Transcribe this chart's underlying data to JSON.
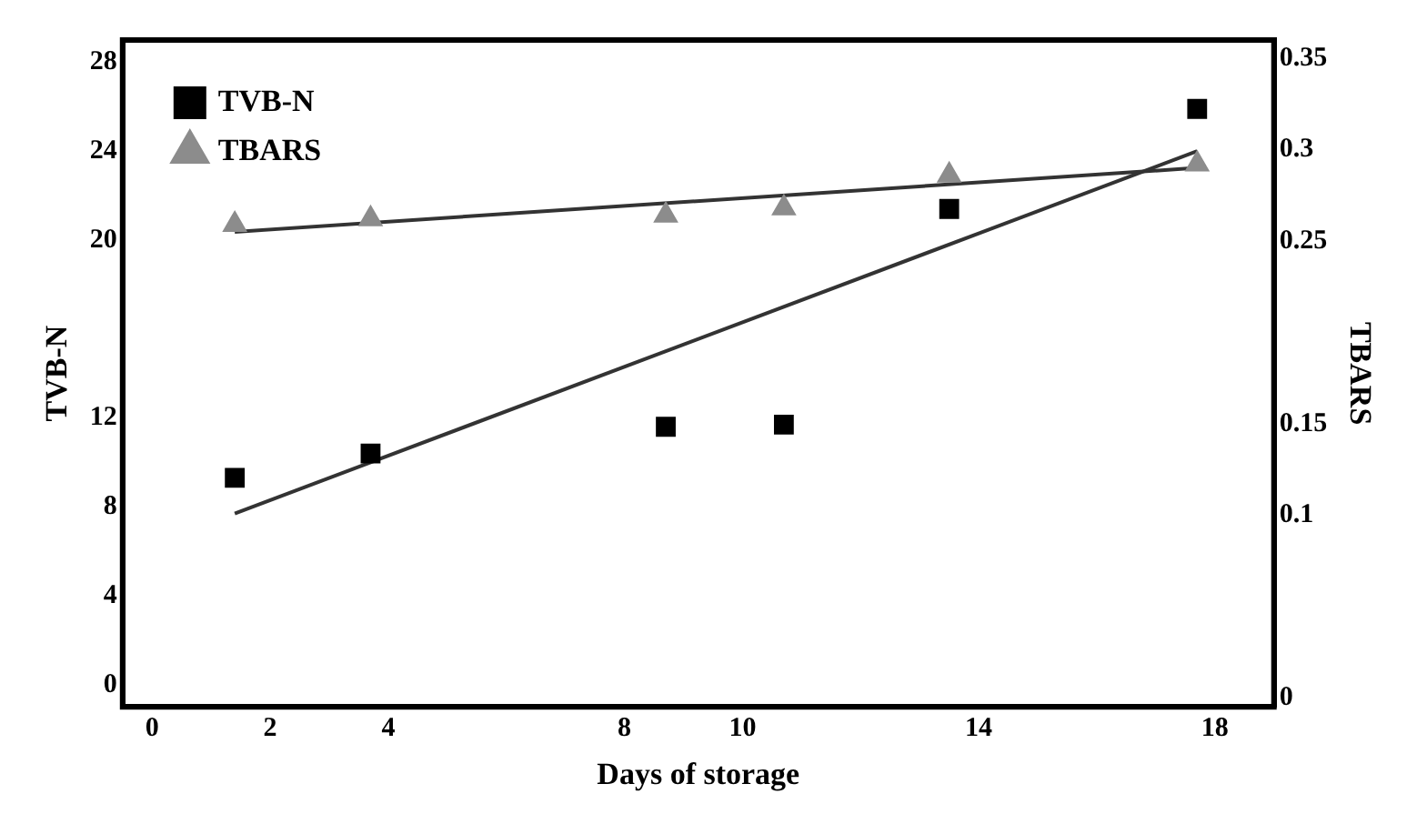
{
  "chart_data": {
    "type": "scatter",
    "xlabel": "Days of storage",
    "ylabel": "TVB-N",
    "y2label": "TBARS",
    "xlim": [
      -0.5,
      19
    ],
    "xticks": [
      0,
      2,
      4,
      8,
      10,
      14,
      18
    ],
    "ylim": [
      -1,
      29
    ],
    "yticks": [
      0,
      4,
      8,
      12,
      20,
      24,
      28
    ],
    "y2lim": [
      -0.005,
      0.36
    ],
    "y2ticks": [
      0,
      0.1,
      0.15,
      0.25,
      0.3,
      0.35
    ],
    "grid": false,
    "legend": "top left",
    "series": [
      {
        "name": "TVB-N",
        "marker": "square",
        "color": "#000000",
        "x": [
          1.4,
          3.7,
          8.7,
          10.7,
          13.5,
          17.7
        ],
        "values": [
          9.3,
          10.4,
          11.6,
          11.7,
          21.4,
          25.9
        ]
      },
      {
        "name": "TBARS",
        "marker": "triangle",
        "axis": "y2",
        "color": "#8c8c8c",
        "x": [
          1.4,
          3.7,
          8.7,
          10.7,
          13.5,
          17.7
        ],
        "values": [
          0.259,
          0.262,
          0.264,
          0.268,
          0.286,
          0.292
        ]
      },
      {
        "type": "line",
        "marker": "none",
        "color": "#333333",
        "x": [
          1.4,
          17.7
        ],
        "values": [
          7.7,
          24.0
        ]
      },
      {
        "type": "line",
        "marker": "none",
        "axis": "y2",
        "color": "#333333",
        "x": [
          1.4,
          17.7
        ],
        "values": [
          0.255,
          0.29
        ]
      }
    ]
  }
}
